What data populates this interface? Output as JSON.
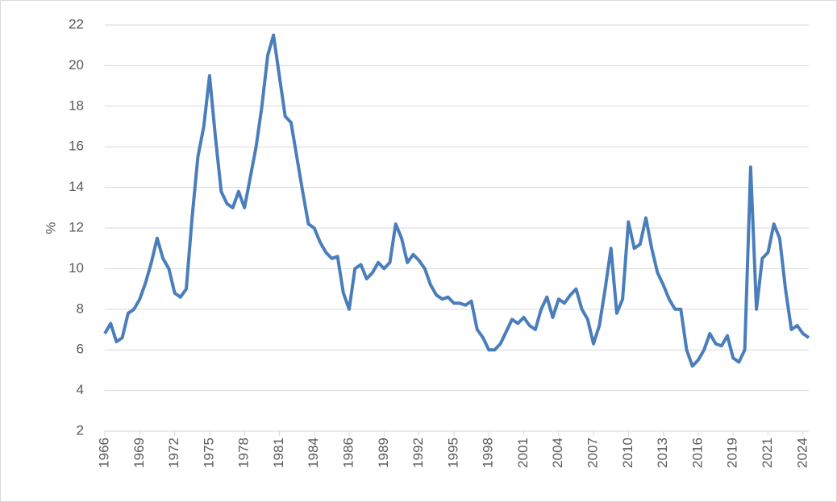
{
  "chart_data": {
    "type": "line",
    "y_label": "%",
    "categories": [
      "1966",
      null,
      null,
      null,
      null,
      null,
      "1969",
      null,
      null,
      null,
      null,
      null,
      "1972",
      null,
      null,
      null,
      null,
      null,
      "1975",
      null,
      null,
      null,
      null,
      null,
      "1978",
      null,
      null,
      null,
      null,
      null,
      "1981",
      null,
      null,
      null,
      null,
      null,
      "1984",
      null,
      null,
      null,
      null,
      null,
      "1986",
      null,
      null,
      null,
      null,
      null,
      "1989",
      null,
      null,
      null,
      null,
      null,
      "1992",
      null,
      null,
      null,
      null,
      null,
      "1995",
      null,
      null,
      null,
      null,
      null,
      "1998",
      null,
      null,
      null,
      null,
      null,
      "2001",
      null,
      null,
      null,
      null,
      null,
      "2004",
      null,
      null,
      null,
      null,
      null,
      "2007",
      null,
      null,
      null,
      null,
      null,
      "2010",
      null,
      null,
      null,
      null,
      null,
      "2013",
      null,
      null,
      null,
      null,
      null,
      "2016",
      null,
      null,
      null,
      null,
      null,
      "2019",
      null,
      null,
      null,
      null,
      null,
      "2021",
      null,
      null,
      null,
      null,
      null,
      "2024",
      null
    ],
    "values": [
      6.8,
      7.3,
      6.4,
      6.6,
      7.8,
      8.0,
      8.5,
      9.3,
      10.3,
      11.5,
      10.5,
      10.0,
      8.8,
      8.6,
      9.0,
      12.5,
      15.5,
      17.0,
      19.5,
      16.5,
      13.8,
      13.2,
      13.0,
      13.8,
      13.0,
      14.5,
      16.0,
      18.0,
      20.5,
      21.5,
      19.5,
      17.5,
      17.2,
      15.5,
      13.8,
      12.2,
      12.0,
      11.3,
      10.8,
      10.5,
      10.6,
      8.8,
      8.0,
      10.0,
      10.2,
      9.5,
      9.8,
      10.3,
      10.0,
      10.3,
      12.2,
      11.5,
      10.3,
      10.7,
      10.4,
      10.0,
      9.2,
      8.7,
      8.5,
      8.6,
      8.3,
      8.3,
      8.2,
      8.4,
      7.0,
      6.6,
      6.0,
      6.0,
      6.3,
      6.9,
      7.5,
      7.3,
      7.6,
      7.2,
      7.0,
      8.0,
      8.6,
      7.6,
      8.5,
      8.3,
      8.7,
      9.0,
      8.0,
      7.5,
      6.3,
      7.2,
      9.0,
      11.0,
      7.8,
      8.5,
      12.3,
      11.0,
      11.2,
      12.5,
      11.0,
      9.8,
      9.2,
      8.5,
      8.0,
      8.0,
      6.0,
      5.2,
      5.5,
      6.0,
      6.8,
      6.3,
      6.2,
      6.7,
      5.6,
      5.4,
      6.0,
      15.0,
      8.0,
      10.5,
      10.8,
      12.2,
      11.5,
      9.0,
      7.0,
      7.2,
      6.8,
      6.6
    ],
    "color": "#4a7ebb",
    "ylim": [
      2,
      22
    ],
    "yticks": [
      2,
      4,
      6,
      8,
      10,
      12,
      14,
      16,
      18,
      20,
      22
    ],
    "grid": true
  }
}
